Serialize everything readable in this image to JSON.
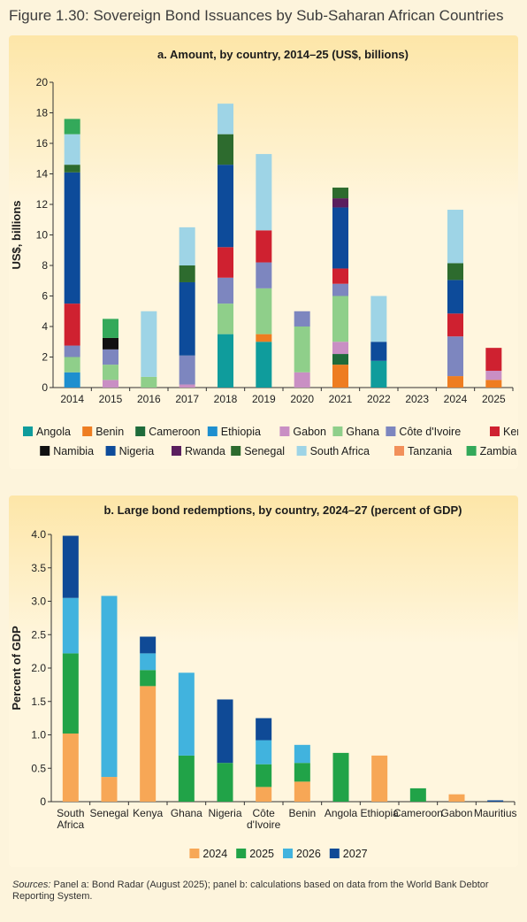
{
  "figure_title": "Figure 1.30: Sovereign Bond Issuances by Sub-Saharan African Countries",
  "sources_label": "Sources:",
  "sources_text": "Panel a: Bond Radar (August 2025); panel b: calculations based on data from the World Bank Debtor Reporting System.",
  "chart_data": [
    {
      "type": "bar",
      "stacked": true,
      "title": "a. Amount, by country, 2014–25 (US$, billions)",
      "ylabel": "US$, billions",
      "ylim": [
        0,
        20
      ],
      "yticks": [
        0,
        2,
        4,
        6,
        8,
        10,
        12,
        14,
        16,
        18,
        20
      ],
      "categories": [
        "2014",
        "2015",
        "2016",
        "2017",
        "2018",
        "2019",
        "2020",
        "2021",
        "2022",
        "2023",
        "2024",
        "2025"
      ],
      "legend_position": "bottom",
      "series": [
        {
          "name": "Angola",
          "color": "#0f9c9c",
          "values": [
            0,
            0,
            0,
            0,
            3.5,
            3,
            0,
            0,
            1.75,
            0,
            0,
            0
          ]
        },
        {
          "name": "Benin",
          "color": "#ee7d21",
          "values": [
            0,
            0,
            0,
            0,
            0,
            0.5,
            0,
            1.5,
            0,
            0,
            0.75,
            0.5
          ]
        },
        {
          "name": "Cameroon",
          "color": "#1e6b3a",
          "values": [
            0,
            0,
            0,
            0,
            0,
            0,
            0,
            0.7,
            0,
            0,
            0,
            0
          ]
        },
        {
          "name": "Ethiopia",
          "color": "#1e8fcf",
          "values": [
            1,
            0,
            0,
            0,
            0,
            0,
            0,
            0,
            0,
            0,
            0,
            0
          ]
        },
        {
          "name": "Gabon",
          "color": "#c98fc4",
          "values": [
            0,
            0.5,
            0,
            0.2,
            0,
            0,
            1,
            0.8,
            0,
            0,
            0,
            0.6
          ]
        },
        {
          "name": "Ghana",
          "color": "#8fcf8a",
          "values": [
            1,
            1,
            0.7,
            0,
            2,
            3,
            3,
            3,
            0,
            0,
            0,
            0
          ]
        },
        {
          "name": "Côte d'Ivoire",
          "color": "#7d86bf",
          "values": [
            0.75,
            1,
            0,
            1.9,
            1.7,
            1.7,
            1,
            0.8,
            0,
            0,
            2.6,
            0
          ]
        },
        {
          "name": "Kenya",
          "color": "#cf2130",
          "values": [
            2.75,
            0,
            0,
            0,
            2,
            2.1,
            0,
            1,
            0,
            0,
            1.5,
            1.5
          ]
        },
        {
          "name": "Namibia",
          "color": "#111111",
          "values": [
            0,
            0.75,
            0,
            0,
            0,
            0,
            0,
            0,
            0,
            0,
            0,
            0
          ]
        },
        {
          "name": "Nigeria",
          "color": "#0d4b9a",
          "values": [
            8.6,
            0,
            0,
            4.8,
            5.4,
            0,
            0,
            4,
            1.25,
            0,
            2.2,
            0
          ]
        },
        {
          "name": "Rwanda",
          "color": "#5a1f5e",
          "values": [
            0,
            0,
            0,
            0,
            0,
            0,
            0,
            0.6,
            0,
            0,
            0,
            0
          ]
        },
        {
          "name": "Senegal",
          "color": "#2d6b2e",
          "values": [
            0.5,
            0,
            0,
            1.1,
            2,
            0,
            0,
            0.7,
            0,
            0,
            1.1,
            0
          ]
        },
        {
          "name": "South Africa",
          "color": "#9ed4e6",
          "values": [
            2,
            0,
            4.3,
            2.5,
            2,
            5,
            0,
            0,
            3,
            0,
            3.5,
            0
          ]
        },
        {
          "name": "Tanzania",
          "color": "#f2905a",
          "values": [
            0,
            0,
            0,
            0,
            0,
            0,
            0,
            0,
            0,
            0,
            0,
            0
          ]
        },
        {
          "name": "Zambia",
          "color": "#33a95a",
          "values": [
            1,
            1.25,
            0,
            0,
            0,
            0,
            0,
            0,
            0,
            0,
            0,
            0
          ]
        }
      ]
    },
    {
      "type": "bar",
      "stacked": true,
      "title": "b. Large bond redemptions, by country, 2024–27 (percent of GDP)",
      "ylabel": "Percent of GDP",
      "ylim": [
        0,
        4.0
      ],
      "yticks": [
        "0",
        "0.5",
        "1.0",
        "1.5",
        "2.0",
        "2.5",
        "3.0",
        "3.5",
        "4.0"
      ],
      "categories": [
        [
          "South",
          "Africa"
        ],
        [
          "Senegal"
        ],
        [
          "Kenya"
        ],
        [
          "Ghana"
        ],
        [
          "Nigeria"
        ],
        [
          "Côte",
          "d'Ivoire"
        ],
        [
          "Benin"
        ],
        [
          "Angola"
        ],
        [
          "Ethiopia"
        ],
        [
          "Cameroon"
        ],
        [
          "Gabon"
        ],
        [
          "Mauritius"
        ]
      ],
      "legend_position": "bottom",
      "series": [
        {
          "name": "2024",
          "color": "#f7a756",
          "values": [
            1.02,
            0.37,
            1.73,
            0,
            0,
            0.22,
            0.3,
            0,
            0.69,
            0,
            0.11,
            0
          ]
        },
        {
          "name": "2025",
          "color": "#21a348",
          "values": [
            1.2,
            0,
            0.24,
            0.69,
            0.58,
            0.34,
            0.28,
            0.73,
            0,
            0.2,
            0,
            0
          ]
        },
        {
          "name": "2026",
          "color": "#41b3de",
          "values": [
            0.83,
            2.71,
            0.25,
            1.24,
            0,
            0.36,
            0.27,
            0,
            0,
            0,
            0,
            0
          ]
        },
        {
          "name": "2027",
          "color": "#0f4a96",
          "values": [
            0.93,
            0,
            0.25,
            0,
            0.95,
            0.33,
            0,
            0,
            0,
            0,
            0,
            0.02
          ]
        }
      ]
    }
  ]
}
